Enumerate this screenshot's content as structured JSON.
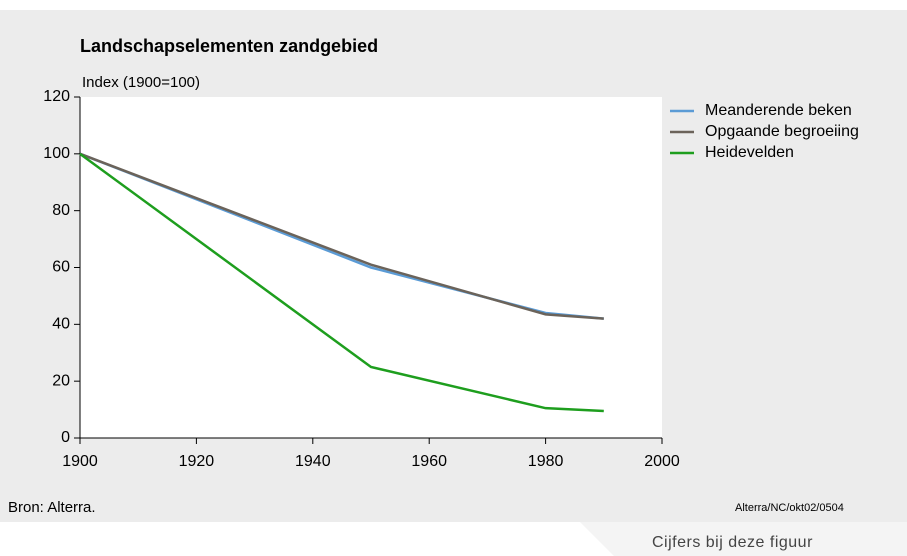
{
  "chart_data": {
    "type": "line",
    "title": "Landschapselementen zandgebied",
    "subtitle": "Index (1900=100)",
    "source": "Bron: Alterra.",
    "credit": "Alterra/NC/okt02/0504",
    "link": "Cijfers bij deze figuur",
    "x": [
      1900,
      1950,
      1980,
      1990
    ],
    "series": [
      {
        "name": "Meanderende beken",
        "color": "#5b9bd5",
        "values": [
          100,
          60,
          44,
          42
        ]
      },
      {
        "name": "Opgaande begroeiing",
        "color": "#6b635a",
        "values": [
          100,
          61,
          43.5,
          42
        ]
      },
      {
        "name": "Heidevelden",
        "color": "#1e9e1e",
        "values": [
          100,
          25,
          10.5,
          9.5
        ]
      }
    ],
    "xlim": [
      1900,
      2000
    ],
    "xticks": [
      1900,
      1920,
      1940,
      1960,
      1980,
      2000
    ],
    "ylim": [
      0,
      120
    ],
    "yticks": [
      0,
      20,
      40,
      60,
      80,
      100,
      120
    ],
    "legend": "right"
  }
}
